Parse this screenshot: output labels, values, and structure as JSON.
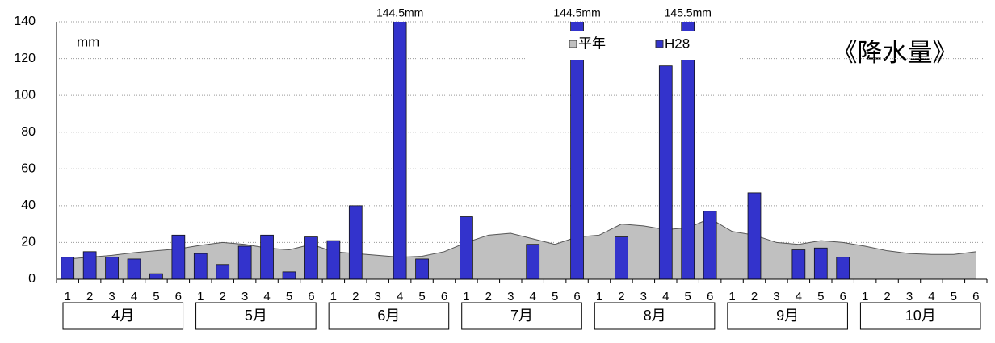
{
  "chart_data": {
    "type": "bar",
    "title": "《降水量》",
    "y_unit": "mm",
    "categories": [
      "1",
      "2",
      "3",
      "4",
      "5",
      "6",
      "1",
      "2",
      "3",
      "4",
      "5",
      "6",
      "1",
      "2",
      "3",
      "4",
      "5",
      "6",
      "1",
      "2",
      "3",
      "4",
      "5",
      "6",
      "1",
      "2",
      "3",
      "4",
      "5",
      "6",
      "1",
      "2",
      "3",
      "4",
      "5",
      "6",
      "1",
      "2",
      "3",
      "4",
      "5",
      "6"
    ],
    "groups": [
      "4月",
      "5月",
      "6月",
      "7月",
      "8月",
      "9月",
      "10月"
    ],
    "ylim": [
      0,
      140
    ],
    "yticks": [
      0,
      20,
      40,
      60,
      80,
      100,
      120,
      140
    ],
    "grid": true,
    "series": [
      {
        "name": "平年",
        "type": "area",
        "color": "#c0c0c0",
        "values": [
          11,
          12,
          13,
          14.5,
          15.5,
          16.5,
          18.5,
          20,
          19,
          17,
          16,
          19,
          15,
          14,
          13,
          12,
          12.5,
          15,
          20,
          24,
          25,
          22,
          19,
          23,
          24,
          30,
          29,
          27,
          28,
          33,
          26,
          24,
          20,
          19,
          21,
          20,
          18,
          15.5,
          14,
          13.5,
          13.5,
          15
        ]
      },
      {
        "name": "H28",
        "type": "bar",
        "color": "#3333cc",
        "values": [
          12,
          15,
          12,
          11,
          3,
          24,
          14,
          8,
          18,
          24,
          4,
          23,
          21,
          40,
          0,
          144.5,
          11,
          0,
          34,
          0,
          0,
          19,
          0,
          144.5,
          0,
          23,
          0,
          116,
          145.5,
          37,
          0,
          47,
          0,
          16,
          17,
          12,
          null,
          null,
          null,
          null,
          null,
          null
        ],
        "value_labels": [
          null,
          null,
          null,
          null,
          null,
          null,
          null,
          null,
          null,
          null,
          null,
          null,
          null,
          null,
          null,
          "144.5mm",
          null,
          null,
          null,
          null,
          null,
          null,
          null,
          "144.5mm",
          null,
          null,
          null,
          null,
          "145.5mm",
          null,
          null,
          null,
          null,
          null,
          null,
          null,
          null,
          null,
          null,
          null,
          null,
          null
        ]
      }
    ]
  }
}
